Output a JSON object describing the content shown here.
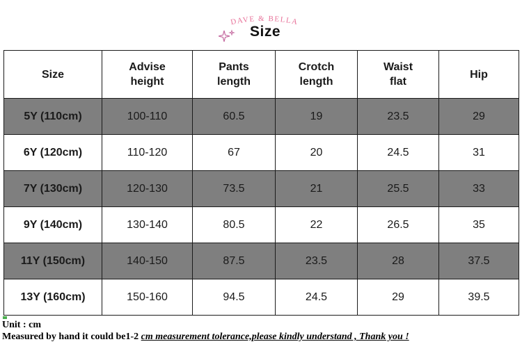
{
  "header": {
    "brand": "DAVE & BELLA",
    "title": "Size",
    "brand_color": "#e8739a",
    "sparkle_icon": "sparkle-icon"
  },
  "table": {
    "columns": [
      "Size",
      "Advise\nheight",
      "Pants\nlength",
      "Crotch\nlength",
      "Waist\nflat",
      "Hip"
    ],
    "rows": [
      {
        "size": "5Y (110cm)",
        "height": "100-110",
        "pants": "60.5",
        "crotch": "19",
        "waist": "23.5",
        "hip": "29",
        "shaded": true
      },
      {
        "size": "6Y (120cm)",
        "height": "110-120",
        "pants": "67",
        "crotch": "20",
        "waist": "24.5",
        "hip": "31",
        "shaded": false
      },
      {
        "size": "7Y (130cm)",
        "height": "120-130",
        "pants": "73.5",
        "crotch": "21",
        "waist": "25.5",
        "hip": "33",
        "shaded": true
      },
      {
        "size": "9Y (140cm)",
        "height": "130-140",
        "pants": "80.5",
        "crotch": "22",
        "waist": "26.5",
        "hip": "35",
        "shaded": false
      },
      {
        "size": "11Y (150cm)",
        "height": "140-150",
        "pants": "87.5",
        "crotch": "23.5",
        "waist": "28",
        "hip": "37.5",
        "shaded": true
      },
      {
        "size": "13Y (160cm)",
        "height": "150-160",
        "pants": "94.5",
        "crotch": "24.5",
        "waist": "29",
        "hip": "39.5",
        "shaded": false
      }
    ],
    "shade_color": "#7f7f7f"
  },
  "notes": {
    "unit": "Unit : cm",
    "measure_prefix": "Measured by hand it could be1-2 ",
    "measure_emphasis": "cm measurement tolerance,please kindly understand , Thank you !"
  }
}
